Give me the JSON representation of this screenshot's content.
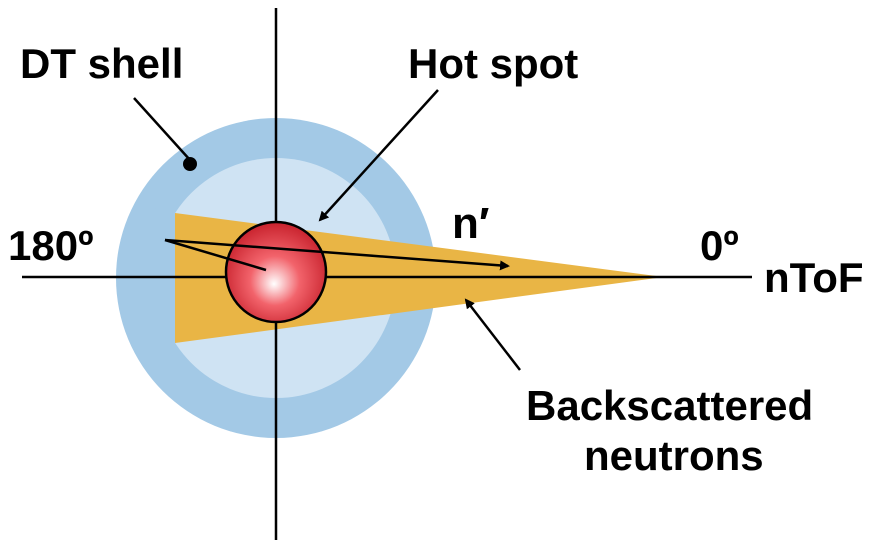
{
  "diagram": {
    "labels": {
      "dt_shell": "DT shell",
      "hot_spot": "Hot spot",
      "n_prime": "n′",
      "deg_180": "180º",
      "deg_0": "0º",
      "ntof": "nToF",
      "backscattered_line1": "Backscattered",
      "backscattered_line2": "neutrons"
    },
    "colors": {
      "shell_outer": "#a3c9e6",
      "shell_inner": "#cfe3f3",
      "cone": "#e9b545",
      "hot_spot_center": "#ffffff",
      "hot_spot_mid": "#f2636b",
      "hot_spot_edge": "#c8222d",
      "axes": "#000000"
    }
  }
}
